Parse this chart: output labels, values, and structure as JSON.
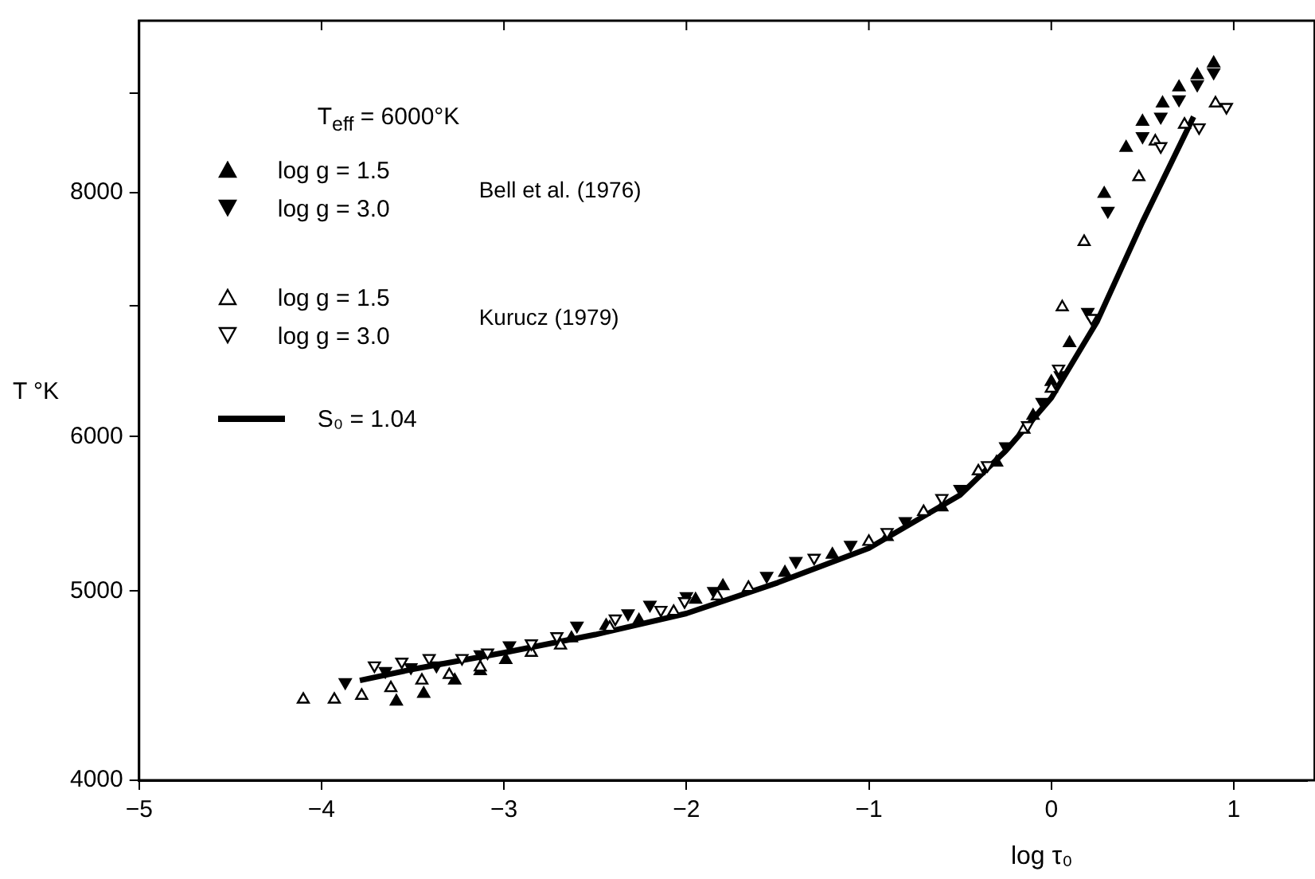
{
  "chart_data": {
    "type": "scatter",
    "xlabel": "log τ₀",
    "ylabel": "T °K",
    "legend_title": "T$_{eff}$ = 6000°K",
    "log": "y",
    "xlim": [
      -5,
      1.4
    ],
    "xticks": [
      -5,
      -4,
      -3,
      -2,
      -1,
      0,
      1
    ],
    "ylim": [
      4000,
      9800
    ],
    "yticks": [
      4000,
      5000,
      6000,
      {
        "value": 7000,
        "label": null
      },
      8000,
      {
        "value": 9000,
        "label": null
      }
    ],
    "grid": false,
    "legend": "top left",
    "annotations": [
      "Bell et al. (1976)",
      "Kurucz (1979)"
    ],
    "series": [
      {
        "name": "log g = 1.5",
        "color": "#000000",
        "marker": "triangle",
        "x": [
          -3.59,
          -3.44,
          -3.27,
          -3.13,
          -2.99,
          -2.63,
          -2.44,
          -2.26,
          -1.95,
          -1.8,
          -1.46,
          -1.2,
          -0.9,
          -0.6,
          -0.3,
          -0.1,
          0.0,
          0.1,
          0.29,
          0.41,
          0.5,
          0.61,
          0.7,
          0.8,
          0.89
        ],
        "values": [
          4390,
          4430,
          4500,
          4550,
          4610,
          4730,
          4800,
          4830,
          4950,
          5030,
          5110,
          5220,
          5330,
          5520,
          5820,
          6150,
          6400,
          6700,
          7990,
          8437,
          8700,
          8890,
          9060,
          9190,
          9320
        ]
      },
      {
        "name": "log g = 3.0",
        "color": "#000000",
        "marker": "triangle-down",
        "x": [
          -3.87,
          -3.65,
          -3.51,
          -3.37,
          -3.13,
          -2.97,
          -2.6,
          -2.32,
          -2.2,
          -2.0,
          -1.85,
          -1.56,
          -1.4,
          -1.1,
          -0.8,
          -0.5,
          -0.25,
          -0.05,
          0.05,
          0.2,
          0.31,
          0.5,
          0.6,
          0.7,
          0.8,
          0.89
        ],
        "values": [
          4490,
          4550,
          4570,
          4580,
          4640,
          4690,
          4800,
          4870,
          4920,
          4970,
          5000,
          5090,
          5180,
          5280,
          5430,
          5640,
          5930,
          6250,
          6450,
          6950,
          7830,
          8550,
          8750,
          8930,
          9090,
          9220
        ]
      },
      {
        "name": "log g = 1.5",
        "color": "#ffffff",
        "marker": "triangle",
        "x": [
          -4.1,
          -3.93,
          -3.78,
          -3.62,
          -3.45,
          -3.3,
          -3.13,
          -2.85,
          -2.69,
          -2.42,
          -2.07,
          -1.83,
          -1.66,
          -1.0,
          -0.7,
          -0.4,
          -0.15,
          0.0,
          0.06,
          0.18,
          0.48,
          0.57,
          0.73,
          0.9
        ],
        "values": [
          4400,
          4400,
          4420,
          4460,
          4500,
          4530,
          4570,
          4650,
          4690,
          4790,
          4880,
          4970,
          5020,
          5300,
          5490,
          5760,
          6050,
          6350,
          6990,
          7550,
          8150,
          8500,
          8670,
          8890
        ]
      },
      {
        "name": "log g = 3.0",
        "color": "#ffffff",
        "marker": "triangle-down",
        "x": [
          -3.71,
          -3.56,
          -3.41,
          -3.23,
          -3.09,
          -2.85,
          -2.71,
          -2.39,
          -2.14,
          -2.01,
          -1.3,
          -0.9,
          -0.6,
          -0.35,
          -0.13,
          0.04,
          0.22,
          0.6,
          0.81,
          0.96
        ],
        "values": [
          4580,
          4600,
          4620,
          4620,
          4650,
          4700,
          4740,
          4840,
          4890,
          4940,
          5200,
          5360,
          5580,
          5800,
          6080,
          6500,
          6900,
          8450,
          8640,
          8850
        ]
      },
      {
        "name": "S₀ = 1.04",
        "type": "line",
        "color": "#000000",
        "marker": "none",
        "line_style": "solid",
        "x": [
          -3.79,
          -3.5,
          -3,
          -2.5,
          -2,
          -1.5,
          -1,
          -0.5,
          -0.25,
          0,
          0.25,
          0.5,
          0.78
        ],
        "values": [
          4500,
          4560,
          4650,
          4750,
          4870,
          5050,
          5260,
          5600,
          5900,
          6280,
          6870,
          7730,
          8750
        ]
      }
    ]
  }
}
